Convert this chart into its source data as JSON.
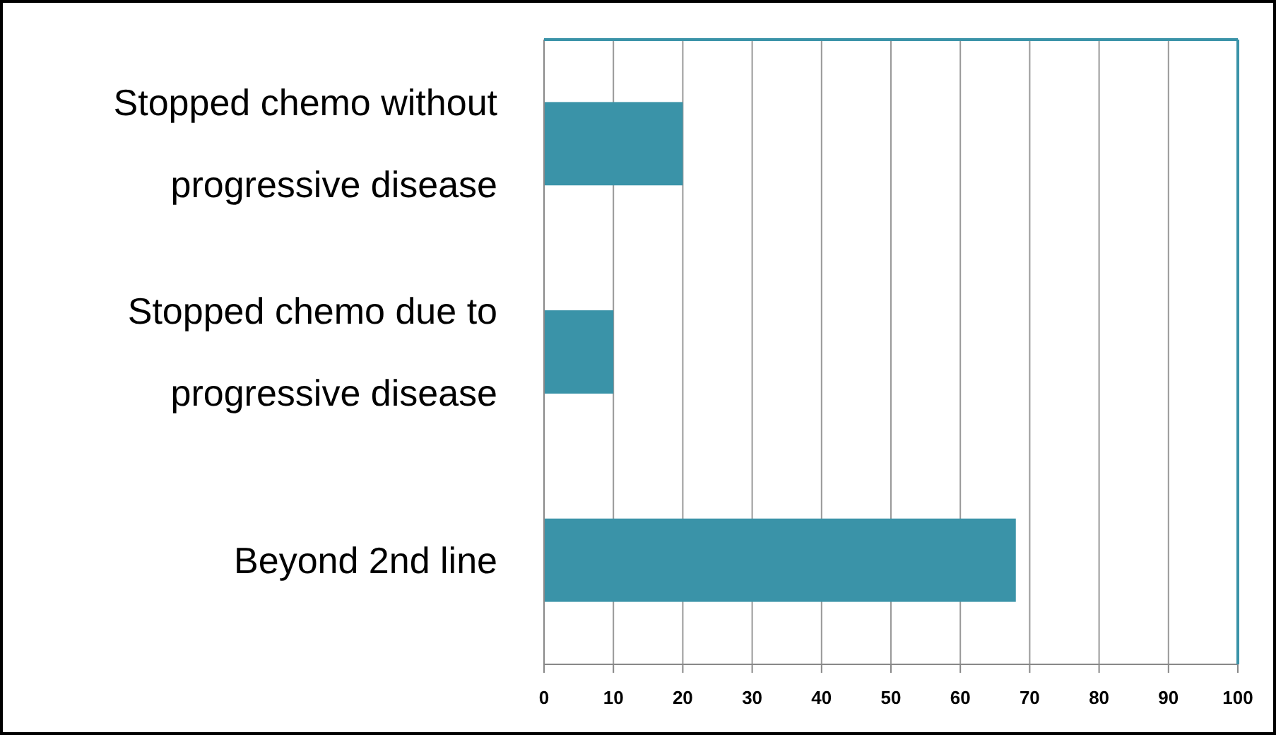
{
  "chart_data": {
    "type": "bar",
    "orientation": "horizontal",
    "categories": [
      "Stopped chemo without progressive disease",
      "Stopped chemo due to progressive disease",
      "Beyond 2nd line"
    ],
    "values": [
      20,
      10,
      68
    ],
    "color": "#3a93a8",
    "xlim": [
      0,
      100
    ],
    "xticks": [
      0,
      10,
      20,
      30,
      40,
      50,
      60,
      70,
      80,
      90,
      100
    ],
    "grid": "x"
  }
}
